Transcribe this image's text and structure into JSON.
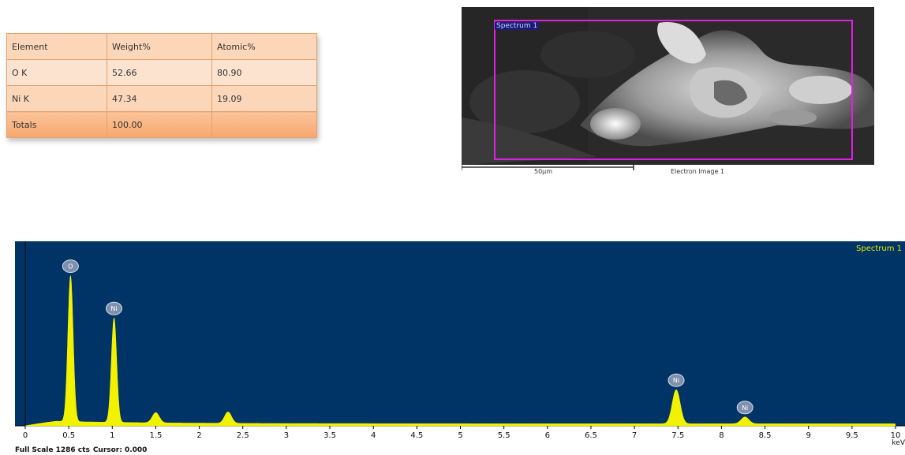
{
  "composition_table": {
    "headers": [
      "Element",
      "Weight%",
      "Atomic%"
    ],
    "rows": [
      [
        "O K",
        "52.66",
        "80.90"
      ],
      [
        "Ni K",
        "47.34",
        "19.09"
      ],
      [
        "Totals",
        "100.00",
        ""
      ]
    ]
  },
  "sem_image": {
    "box_label": "Spectrum 1",
    "scale_bar_label": "50µm",
    "caption": "Electron Image 1",
    "box_color": "#e020e0"
  },
  "chart_data": {
    "type": "line",
    "title": "Spectrum 1",
    "xlabel": "keV",
    "xlim": [
      0,
      10
    ],
    "x_ticks": [
      "0",
      "0.5",
      "1",
      "1.5",
      "2",
      "2.5",
      "3",
      "3.5",
      "4",
      "4.5",
      "5",
      "5.5",
      "6",
      "6.5",
      "7",
      "7.5",
      "8",
      "8.5",
      "9",
      "9.5",
      "10"
    ],
    "full_scale_counts": 1286,
    "peaks": [
      {
        "label": "O",
        "x": 0.52,
        "counts": 1286
      },
      {
        "label": "Ni",
        "x": 1.02,
        "counts": 920
      },
      {
        "label": "Ni",
        "x": 7.48,
        "counts": 300
      },
      {
        "label": "Ni",
        "x": 8.27,
        "counts": 60
      }
    ],
    "minor_bumps": [
      {
        "x": 1.5,
        "counts": 90
      },
      {
        "x": 2.33,
        "counts": 100
      }
    ],
    "colors": {
      "background": "#003366",
      "spectrum": "#f2f200",
      "label": "#e8e800"
    }
  },
  "spectrum_footer": {
    "full_scale": "Full Scale 1286 cts",
    "cursor": "Cursor: 0.000"
  }
}
